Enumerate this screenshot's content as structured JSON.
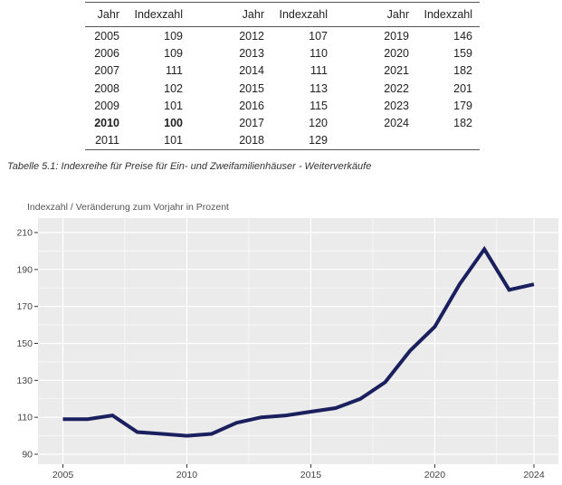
{
  "table": {
    "headers": [
      "Jahr",
      "Indexzahl",
      "Jahr",
      "Indexzahl",
      "Jahr",
      "Indexzahl"
    ],
    "rows": [
      [
        "2005",
        "109",
        "2012",
        "107",
        "2019",
        "146"
      ],
      [
        "2006",
        "109",
        "2013",
        "110",
        "2020",
        "159"
      ],
      [
        "2007",
        "111",
        "2014",
        "111",
        "2021",
        "182"
      ],
      [
        "2008",
        "102",
        "2015",
        "113",
        "2022",
        "201"
      ],
      [
        "2009",
        "101",
        "2016",
        "115",
        "2023",
        "179"
      ],
      [
        "2010",
        "100",
        "2017",
        "120",
        "2024",
        "182"
      ],
      [
        "2011",
        "101",
        "2018",
        "129",
        "",
        ""
      ]
    ],
    "bold_row": 5
  },
  "caption": "Tabelle 5.1: Indexreihe für Preise für Ein- und Zweifamilienhäuser - Weiterverkäufe",
  "chart_data": {
    "type": "line",
    "title": "",
    "ylabel": "Indexzahl / Veränderung zum Vorjahr in Prozent",
    "xlabel": "",
    "x": [
      2005,
      2006,
      2007,
      2008,
      2009,
      2010,
      2011,
      2012,
      2013,
      2014,
      2015,
      2016,
      2017,
      2018,
      2019,
      2020,
      2021,
      2022,
      2023,
      2024
    ],
    "series": [
      {
        "values": [
          109,
          109,
          111,
          102,
          101,
          100,
          101,
          107,
          110,
          111,
          113,
          115,
          120,
          129,
          146,
          159,
          182,
          201,
          179,
          182
        ]
      }
    ],
    "xticks": [
      2005,
      2010,
      2015,
      2020,
      2024
    ],
    "yticks": [
      90,
      110,
      130,
      150,
      170,
      190,
      210
    ],
    "xlim": [
      2005,
      2024
    ],
    "ylim": [
      90,
      210
    ],
    "grid": true,
    "colors": {
      "line": "#1a1f5e",
      "panel": "#ebebeb",
      "grid": "#ffffff"
    }
  }
}
